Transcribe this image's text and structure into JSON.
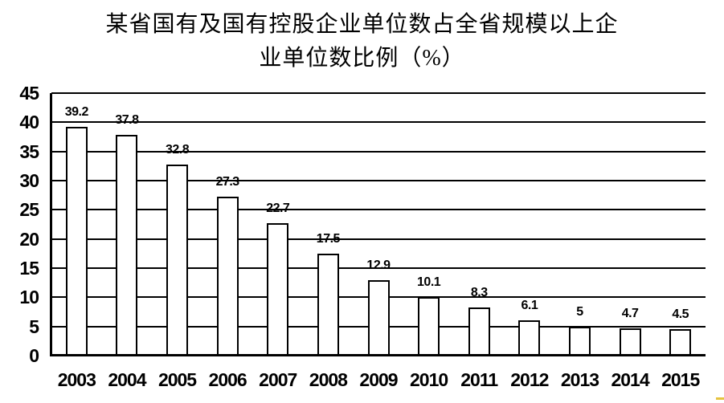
{
  "chart_data": {
    "type": "bar",
    "title": "某省国有及国有控股企业单位数占全省规模以上企业单位数比例（%）",
    "title_line1": "某省国有及国有控股企业单位数占全省规模以上企",
    "title_line2": "业单位数比例（%）",
    "categories": [
      "2003",
      "2004",
      "2005",
      "2006",
      "2007",
      "2008",
      "2009",
      "2010",
      "2011",
      "2012",
      "2013",
      "2014",
      "2015"
    ],
    "values": [
      39.2,
      37.8,
      32.8,
      27.3,
      22.7,
      17.5,
      12.9,
      10.1,
      8.3,
      6.1,
      5,
      4.7,
      4.5
    ],
    "value_labels": [
      "39.2",
      "37.8",
      "32.8",
      "27.3",
      "22.7",
      "17.5",
      "12.9",
      "10.1",
      "8.3",
      "6.1",
      "5",
      "4.7",
      "4.5"
    ],
    "y_ticks": [
      45,
      40,
      35,
      30,
      25,
      20,
      15,
      10,
      5,
      0
    ],
    "ylim": [
      0,
      45
    ],
    "xlabel": "",
    "ylabel": "",
    "grid": "horizontal-major",
    "legend": "none",
    "colors": {
      "bar_fill": "#ffffff",
      "bar_border": "#000000",
      "gridline": "#000000",
      "axis": "#000000",
      "text": "#000000"
    }
  },
  "artifact": {
    "corner_mark_color": "#e6c33e"
  }
}
